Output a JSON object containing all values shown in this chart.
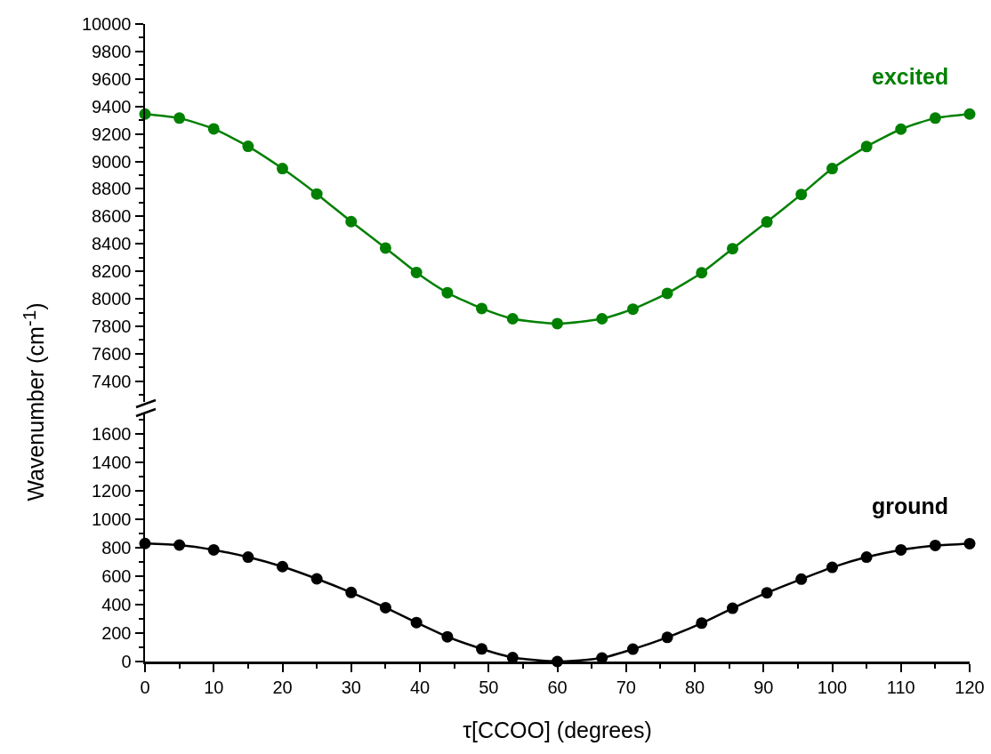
{
  "chart_data": [
    {
      "type": "line",
      "ylabel": "Wavenumber (cm$^{-1}$)",
      "x": [
        0,
        5,
        10,
        15,
        20,
        25,
        30,
        35,
        39.5,
        44,
        49,
        53.5,
        60,
        66.5,
        71,
        76,
        81,
        85.5,
        90.5,
        95.5,
        100,
        105,
        110,
        115,
        120
      ],
      "series": [
        {
          "name": "excited",
          "color": "#008000",
          "values": [
            9345,
            9315,
            9237,
            9110,
            8948,
            8763,
            8562,
            8370,
            8192,
            8045,
            7930,
            7855,
            7820,
            7855,
            7925,
            8040,
            8190,
            8365,
            8560,
            8760,
            8948,
            9108,
            9235,
            9315,
            9345
          ]
        }
      ],
      "xlim": [
        0,
        120
      ],
      "ylim": [
        7250,
        10000
      ],
      "yticks": [
        7400,
        7600,
        7800,
        8000,
        8200,
        8400,
        8600,
        8800,
        9000,
        9200,
        9400,
        9600,
        9800,
        10000
      ],
      "tick_labels": "y",
      "grid": false,
      "legend": false,
      "marker": "circle",
      "line_style": "solid"
    },
    {
      "type": "line",
      "xlabel": "τ[CCOO] (degrees)",
      "x": [
        0,
        5,
        10,
        15,
        20,
        25,
        30,
        35,
        39.5,
        44,
        49,
        53.5,
        60,
        66.5,
        71,
        76,
        81,
        85.5,
        90.5,
        95.5,
        100,
        105,
        110,
        115,
        120
      ],
      "series": [
        {
          "name": "ground",
          "color": "#000000",
          "values": [
            831,
            820,
            786,
            735,
            668,
            582,
            486,
            379,
            274,
            174,
            89,
            28,
            0,
            25,
            87,
            170,
            270,
            375,
            484,
            580,
            663,
            735,
            786,
            817,
            830
          ]
        }
      ],
      "xlim": [
        0,
        120
      ],
      "xticks": [
        0,
        10,
        20,
        30,
        40,
        50,
        60,
        70,
        80,
        90,
        100,
        110,
        120
      ],
      "ylim": [
        0,
        1740
      ],
      "yticks": [
        0,
        200,
        400,
        600,
        800,
        1000,
        1200,
        1400,
        1600
      ],
      "grid": false,
      "legend": false,
      "marker": "circle",
      "line_style": "solid"
    }
  ]
}
